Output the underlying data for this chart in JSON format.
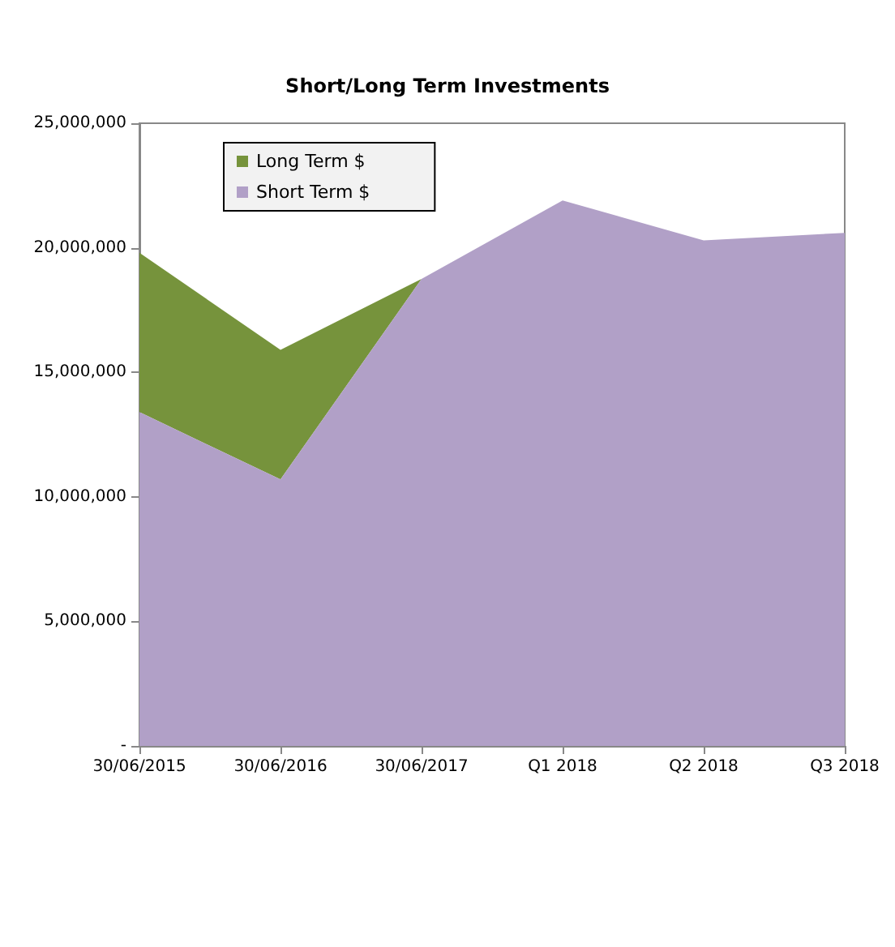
{
  "chart_data": {
    "type": "area",
    "title": "Short/Long Term Investments",
    "stacked": true,
    "categories": [
      "30/06/2015",
      "30/06/2016",
      "30/06/2017",
      "Q1 2018",
      "Q2 2018",
      "Q3 2018"
    ],
    "series": [
      {
        "name": "Short Term $",
        "color": "#b1a0c7",
        "values": [
          13400000,
          10700000,
          18750000,
          21900000,
          20300000,
          20600000
        ]
      },
      {
        "name": "Long Term $",
        "color": "#76933c",
        "values": [
          6400000,
          5200000,
          0,
          0,
          0,
          0
        ]
      }
    ],
    "ylim": [
      0,
      25000000
    ],
    "yticks": [
      {
        "value": 0,
        "label": "-"
      },
      {
        "value": 5000000,
        "label": "5,000,000"
      },
      {
        "value": 10000000,
        "label": "10,000,000"
      },
      {
        "value": 15000000,
        "label": "15,000,000"
      },
      {
        "value": 20000000,
        "label": "20,000,000"
      },
      {
        "value": 25000000,
        "label": "25,000,000"
      }
    ],
    "grid": false,
    "legend": "top left"
  }
}
